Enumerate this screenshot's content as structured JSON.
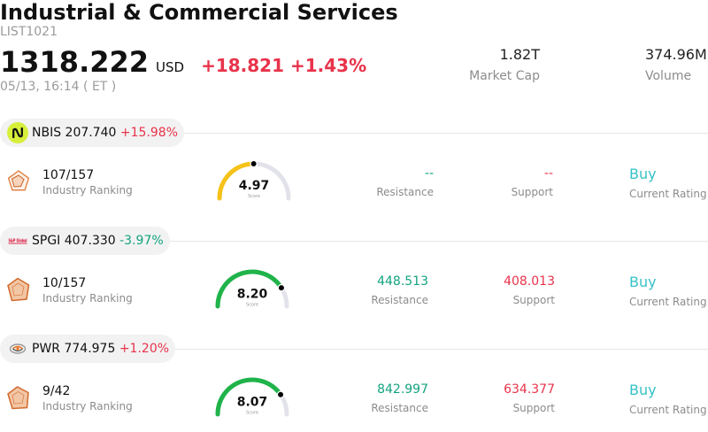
{
  "header": {
    "title": "Industrial & Commercial Services",
    "code": "LIST1021",
    "price": "1318.222",
    "currency": "USD",
    "change": "+18.821",
    "change_pct": "+1.43%",
    "datetime": "05/13, 16:14 ( ET )",
    "market_cap": {
      "value": "1.82T",
      "label": "Market Cap"
    },
    "volume": {
      "value": "374.96M",
      "label": "Volume"
    }
  },
  "colors": {
    "up": "#e8334a",
    "down": "#13a37f",
    "resistance": "#13a37f",
    "support": "#e8334a",
    "rating": "#36c2c8",
    "gauge_track": "#e2e2ea"
  },
  "stocks": [
    {
      "ticker": "NBIS",
      "price": "207.740",
      "change_pct": "+15.98%",
      "logo_icon": "nbis-logo-icon",
      "rank_icon": "radar-chart-icon",
      "industry_rank": "107/157",
      "industry_rank_label": "Industry Ranking",
      "score": "4.97",
      "score_label": "Score",
      "gauge_color": "#f6c217",
      "resistance": "--",
      "resistance_label": "Resistance",
      "support": "--",
      "support_label": "Support",
      "rating": "Buy",
      "rating_label": "Current Rating"
    },
    {
      "ticker": "SPGI",
      "price": "407.330",
      "change_pct": "-3.97%",
      "logo_icon": "spgi-logo-icon",
      "logo_text": "S&P Global",
      "rank_icon": "radar-chart-icon",
      "industry_rank": "10/157",
      "industry_rank_label": "Industry Ranking",
      "score": "8.20",
      "score_label": "Score",
      "gauge_color": "#1fb34a",
      "resistance": "448.513",
      "resistance_label": "Resistance",
      "support": "408.013",
      "support_label": "Support",
      "rating": "Buy",
      "rating_label": "Current Rating"
    },
    {
      "ticker": "PWR",
      "price": "774.975",
      "change_pct": "+1.20%",
      "logo_icon": "pwr-logo-icon",
      "rank_icon": "radar-chart-icon",
      "industry_rank": "9/42",
      "industry_rank_label": "Industry Ranking",
      "score": "8.07",
      "score_label": "Score",
      "gauge_color": "#1fb34a",
      "resistance": "842.997",
      "resistance_label": "Resistance",
      "support": "634.377",
      "support_label": "Support",
      "rating": "Buy",
      "rating_label": "Current Rating"
    }
  ]
}
